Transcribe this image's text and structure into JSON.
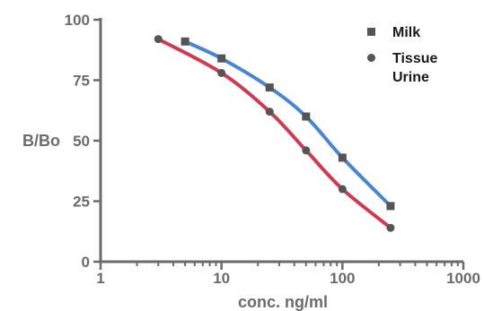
{
  "chart_data": {
    "type": "line",
    "title": "",
    "xlabel": "conc. ng/ml",
    "ylabel": "B/Bo",
    "x_scale": "log",
    "xlim": [
      1,
      1000
    ],
    "ylim": [
      0,
      100
    ],
    "x_ticks": [
      1,
      10,
      100,
      1000
    ],
    "x_tick_labels": [
      "1",
      "10",
      "100",
      "1000"
    ],
    "y_ticks": [
      0,
      25,
      50,
      75,
      100
    ],
    "y_tick_labels": [
      "0",
      "25",
      "50",
      "75",
      "100"
    ],
    "grid": false,
    "legend_position": "top-right",
    "legend": [
      {
        "label": "Milk",
        "marker": "square"
      },
      {
        "label": "Tissue",
        "marker": "circle"
      },
      {
        "label": "Urine",
        "marker": "circle"
      }
    ],
    "series": [
      {
        "name": "Milk",
        "marker": "square",
        "line_color": "#4a86d0",
        "marker_color": "#555555",
        "x": [
          5,
          10,
          25,
          50,
          100,
          250
        ],
        "y": [
          91,
          84,
          72,
          60,
          43,
          23
        ]
      },
      {
        "name": "Tissue/Urine",
        "marker": "circle",
        "line_color": "#cc3d52",
        "marker_color": "#555555",
        "x": [
          3,
          10,
          25,
          50,
          100,
          250
        ],
        "y": [
          92,
          78,
          62,
          46,
          30,
          14
        ]
      }
    ],
    "colors": {
      "axis": "#6b6b6b",
      "text": "#6b6b6b"
    }
  }
}
